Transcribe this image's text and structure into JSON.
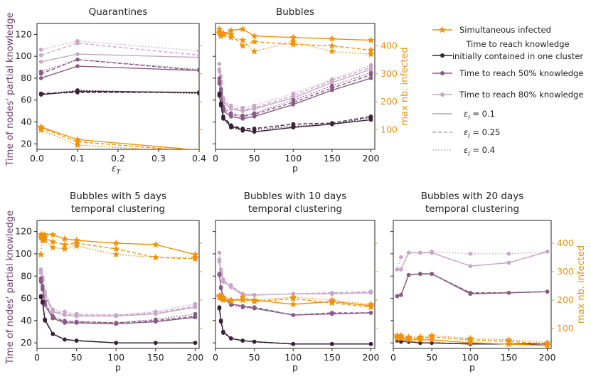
{
  "figure": {
    "left_ylabel": "Time of nodes' partial knowledge",
    "right_ylabel": "max nb. infected",
    "colors": {
      "sim": "#f0920a",
      "c1": "#3a1f36",
      "c50": "#8a5a86",
      "c80": "#c8a6c8"
    }
  },
  "legend": {
    "items": [
      {
        "label": "Simultaneous infected",
        "kind": "sim"
      },
      {
        "label": "Time to reach knowledge\ninitially contained in one cluster",
        "kind": "c1"
      },
      {
        "label": "Time to reach 50% knowledge",
        "kind": "c50"
      },
      {
        "label": "Time to reach 80% knowledge",
        "kind": "c80"
      },
      {
        "label": "εI = 0.1",
        "kind": "solid"
      },
      {
        "label": "εI = 0.25",
        "kind": "dashed"
      },
      {
        "label": "εI = 0.4",
        "kind": "dotted"
      }
    ]
  },
  "chart_data": [
    {
      "type": "line",
      "title": "Quarantines",
      "xlabel": "εT",
      "x": [
        0.01,
        0.1,
        0.4
      ],
      "xlim": [
        0,
        0.4
      ],
      "xticks": [
        0.0,
        0.1,
        0.2,
        0.3,
        0.4
      ],
      "ylim": [
        15,
        130
      ],
      "yticks": [
        20,
        40,
        60,
        80,
        100,
        120
      ],
      "series": [
        {
          "name": "c80",
          "style": "solid",
          "values": [
            95,
            102,
            99
          ]
        },
        {
          "name": "c80",
          "style": "dashed",
          "values": [
            101,
            112,
            101
          ]
        },
        {
          "name": "c80",
          "style": "dotted",
          "values": [
            106,
            114,
            105
          ]
        },
        {
          "name": "c50",
          "style": "solid",
          "values": [
            80,
            91,
            87
          ]
        },
        {
          "name": "c50",
          "style": "dashed",
          "values": [
            84,
            97,
            87
          ]
        },
        {
          "name": "c50",
          "style": "dotted",
          "values": [
            86,
            97,
            88
          ]
        },
        {
          "name": "c1",
          "style": "solid",
          "values": [
            65,
            68,
            67
          ]
        },
        {
          "name": "c1",
          "style": "dashed",
          "values": [
            66,
            67,
            67
          ]
        },
        {
          "name": "c1",
          "style": "dotted",
          "values": [
            65,
            69,
            66
          ]
        }
      ],
      "sim_series": [
        {
          "style": "solid",
          "values": [
            110,
            65,
            27
          ]
        },
        {
          "style": "dashed",
          "values": [
            107,
            57,
            22
          ]
        },
        {
          "style": "dotted",
          "values": [
            99,
            45,
            19
          ]
        }
      ]
    },
    {
      "type": "line",
      "title": "Bubbles",
      "xlabel": "p",
      "x": [
        5,
        7,
        10,
        20,
        35,
        50,
        100,
        150,
        200
      ],
      "xlim": [
        0,
        205
      ],
      "xticks": [
        0,
        50,
        100,
        150,
        200
      ],
      "ylim": [
        15,
        130
      ],
      "right_ylim": [
        30,
        480
      ],
      "right_yticks": [
        100,
        200,
        300,
        400
      ],
      "series": [
        {
          "name": "c80",
          "style": "solid",
          "values": [
            86,
            75,
            58,
            52,
            50,
            52,
            62,
            76,
            88
          ]
        },
        {
          "name": "c80",
          "style": "dashed",
          "values": [
            88,
            77,
            60,
            53,
            51,
            53,
            64,
            78,
            90
          ]
        },
        {
          "name": "c80",
          "style": "dotted",
          "values": [
            93,
            82,
            62,
            55,
            53,
            55,
            66,
            79,
            92
          ]
        },
        {
          "name": "c50",
          "style": "solid",
          "values": [
            75,
            66,
            50,
            45,
            43,
            45,
            56,
            69,
            80
          ]
        },
        {
          "name": "c50",
          "style": "dashed",
          "values": [
            77,
            68,
            52,
            47,
            45,
            47,
            58,
            71,
            83
          ]
        },
        {
          "name": "c50",
          "style": "dotted",
          "values": [
            80,
            70,
            54,
            48,
            46,
            48,
            60,
            73,
            85
          ]
        },
        {
          "name": "c1",
          "style": "solid",
          "values": [
            65,
            56,
            44,
            36,
            33,
            31,
            35,
            38,
            42
          ]
        },
        {
          "name": "c1",
          "style": "dashed",
          "values": [
            66,
            57,
            45,
            37,
            34,
            34,
            38,
            39,
            45
          ]
        },
        {
          "name": "c1",
          "style": "dotted",
          "values": [
            64,
            55,
            43,
            35,
            32,
            33,
            36,
            38,
            44
          ]
        }
      ],
      "sim_series": [
        {
          "style": "solid",
          "values": [
            450,
            445,
            440,
            455,
            460,
            435,
            430,
            425,
            420
          ]
        },
        {
          "style": "dashed",
          "values": [
            460,
            440,
            445,
            440,
            400,
            415,
            405,
            400,
            385
          ]
        },
        {
          "style": "dotted",
          "values": [
            445,
            435,
            440,
            430,
            420,
            380,
            415,
            380,
            370
          ]
        }
      ]
    },
    {
      "type": "line",
      "title": "Bubbles with 5 days\ntemporal clustering",
      "xlabel": "p",
      "x": [
        5,
        7,
        10,
        20,
        35,
        50,
        100,
        150,
        200
      ],
      "xlim": [
        0,
        205
      ],
      "xticks": [
        0,
        50,
        100,
        150,
        200
      ],
      "ylim": [
        15,
        130
      ],
      "yticks": [
        20,
        40,
        60,
        80,
        100,
        120
      ],
      "series": [
        {
          "name": "c80",
          "style": "solid",
          "values": [
            83,
            76,
            62,
            48,
            45,
            44,
            44,
            46,
            52
          ]
        },
        {
          "name": "c80",
          "style": "dashed",
          "values": [
            84,
            77,
            64,
            49,
            46,
            45,
            45,
            47,
            53
          ]
        },
        {
          "name": "c80",
          "style": "dotted",
          "values": [
            86,
            79,
            66,
            50,
            48,
            46,
            45,
            48,
            55
          ]
        },
        {
          "name": "c50",
          "style": "solid",
          "values": [
            75,
            68,
            54,
            42,
            38,
            38,
            37,
            39,
            43
          ]
        },
        {
          "name": "c50",
          "style": "dashed",
          "values": [
            76,
            69,
            55,
            43,
            39,
            39,
            38,
            40,
            44
          ]
        },
        {
          "name": "c50",
          "style": "dotted",
          "values": [
            78,
            71,
            57,
            44,
            40,
            39,
            38,
            41,
            46
          ]
        },
        {
          "name": "c1",
          "style": "solid",
          "values": [
            62,
            57,
            41,
            28,
            23,
            22,
            20,
            20,
            20
          ]
        },
        {
          "name": "c1",
          "style": "dashed",
          "values": [
            62,
            57,
            41,
            28,
            23,
            22,
            20,
            20,
            20
          ]
        },
        {
          "name": "c1",
          "style": "dotted",
          "values": [
            61,
            56,
            40,
            28,
            23,
            22,
            20,
            20,
            20
          ]
        }
      ],
      "sim_series": [
        {
          "style": "solid",
          "values": [
            430,
            430,
            430,
            430,
            415,
            410,
            400,
            395,
            360
          ]
        },
        {
          "style": "dashed",
          "values": [
            420,
            410,
            420,
            405,
            395,
            400,
            380,
            350,
            345
          ]
        },
        {
          "style": "dotted",
          "values": [
            360,
            425,
            410,
            385,
            380,
            390,
            360,
            350,
            350
          ]
        }
      ]
    },
    {
      "type": "line",
      "title": "Bubbles with 10 days\ntemporal clustering",
      "xlabel": "p",
      "x": [
        5,
        7,
        10,
        20,
        35,
        50,
        100,
        150,
        200
      ],
      "xlim": [
        0,
        205
      ],
      "xticks": [
        0,
        50,
        100,
        150,
        200
      ],
      "ylim": [
        15,
        130
      ],
      "series": [
        {
          "name": "c80",
          "style": "solid",
          "values": [
            93,
            82,
            75,
            70,
            63,
            63,
            64,
            64,
            65
          ]
        },
        {
          "name": "c80",
          "style": "dashed",
          "values": [
            95,
            84,
            76,
            71,
            64,
            63,
            64,
            65,
            66
          ]
        },
        {
          "name": "c80",
          "style": "dotted",
          "values": [
            101,
            86,
            77,
            72,
            64,
            63,
            64,
            65,
            66
          ]
        },
        {
          "name": "c50",
          "style": "solid",
          "values": [
            81,
            70,
            60,
            55,
            53,
            51,
            45,
            46,
            47
          ]
        },
        {
          "name": "c50",
          "style": "dashed",
          "values": [
            82,
            70,
            61,
            55,
            53,
            52,
            45,
            47,
            47
          ]
        },
        {
          "name": "c50",
          "style": "dotted",
          "values": [
            82,
            69,
            60,
            54,
            52,
            51,
            45,
            46,
            47
          ]
        },
        {
          "name": "c1",
          "style": "solid",
          "values": [
            51,
            40,
            30,
            24,
            22,
            21,
            19,
            19,
            19
          ]
        },
        {
          "name": "c1",
          "style": "dashed",
          "values": [
            52,
            40,
            30,
            24,
            22,
            21,
            19,
            19,
            19
          ]
        },
        {
          "name": "c1",
          "style": "dotted",
          "values": [
            51,
            39,
            29,
            24,
            22,
            21,
            19,
            19,
            19
          ]
        }
      ],
      "sim_series": [
        {
          "style": "solid",
          "values": [
            215,
            215,
            210,
            200,
            200,
            200,
            185,
            195,
            180
          ]
        },
        {
          "style": "dashed",
          "values": [
            210,
            205,
            200,
            195,
            210,
            195,
            205,
            190,
            175
          ]
        },
        {
          "style": "dotted",
          "values": [
            215,
            210,
            205,
            200,
            200,
            200,
            210,
            200,
            185
          ]
        }
      ]
    },
    {
      "type": "line",
      "title": "Bubbles with 20 days\ntemporal clustering",
      "xlabel": "p",
      "x": [
        5,
        10,
        20,
        35,
        50,
        100,
        150,
        200
      ],
      "xlim": [
        0,
        205
      ],
      "xticks": [
        0,
        50,
        100,
        150,
        200
      ],
      "ylim": [
        15,
        130
      ],
      "right_ylim": [
        30,
        480
      ],
      "right_yticks": [
        100,
        200,
        300,
        400
      ],
      "series": [
        {
          "name": "c80",
          "style": "solid",
          "values": [
            86,
            86,
            101,
            101,
            101,
            89,
            92,
            102
          ]
        },
        {
          "name": "c80",
          "style": "dashed",
          "values": [
            86,
            86,
            101,
            101,
            101,
            89,
            92,
            102
          ]
        },
        {
          "name": "c80",
          "style": "dotted",
          "values": [
            86,
            97,
            101,
            101,
            102,
            100,
            100,
            102
          ]
        },
        {
          "name": "c50",
          "style": "solid",
          "values": [
            62,
            63,
            81,
            82,
            82,
            64,
            65,
            66
          ]
        },
        {
          "name": "c50",
          "style": "dashed",
          "values": [
            62,
            63,
            81,
            82,
            82,
            65,
            65,
            66
          ]
        },
        {
          "name": "c50",
          "style": "dotted",
          "values": [
            62,
            63,
            81,
            82,
            82,
            65,
            65,
            66
          ]
        },
        {
          "name": "c1",
          "style": "solid",
          "values": [
            23,
            22,
            21,
            20,
            20,
            19,
            19,
            19
          ]
        },
        {
          "name": "c1",
          "style": "dashed",
          "values": [
            23,
            22,
            21,
            20,
            20,
            19,
            19,
            19
          ]
        },
        {
          "name": "c1",
          "style": "dotted",
          "values": [
            22,
            21,
            21,
            20,
            20,
            19,
            19,
            19
          ]
        }
      ],
      "sim_series": [
        {
          "style": "solid",
          "values": [
            65,
            65,
            60,
            60,
            60,
            50,
            45,
            40
          ]
        },
        {
          "style": "dashed",
          "values": [
            70,
            70,
            65,
            65,
            70,
            60,
            55,
            45
          ]
        },
        {
          "style": "dotted",
          "values": [
            75,
            75,
            70,
            70,
            75,
            65,
            60,
            50
          ]
        }
      ]
    }
  ]
}
